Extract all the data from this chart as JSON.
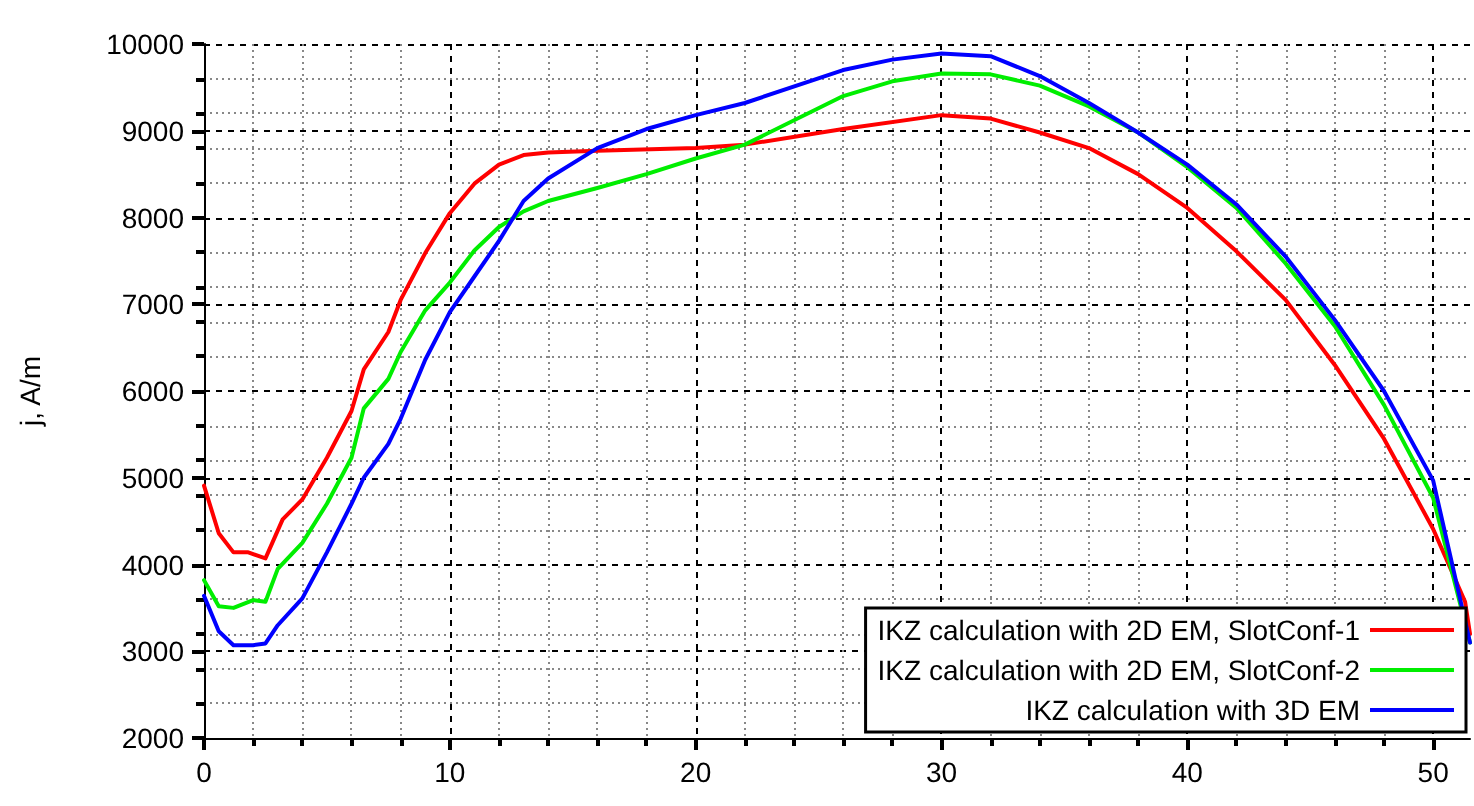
{
  "chart_data": {
    "type": "line",
    "ylabel": "j, A/m",
    "xlim": [
      0,
      51.5
    ],
    "ylim": [
      2000,
      10000
    ],
    "xticks": [
      0,
      10,
      20,
      30,
      40,
      50
    ],
    "yticks": [
      2000,
      3000,
      4000,
      5000,
      6000,
      7000,
      8000,
      9000,
      10000
    ],
    "grid": true,
    "legend": "bottom right",
    "marker": "none",
    "line_style": "solid",
    "series": [
      {
        "name": "IKZ calculation with 2D EM, SlotConf-1",
        "color": "#ff0000",
        "x": [
          0,
          0.6,
          1.2,
          1.8,
          2.5,
          3.2,
          4,
          5,
          6,
          6.5,
          7.5,
          8,
          9,
          10,
          11,
          12,
          13,
          14,
          16,
          20,
          22,
          26,
          30,
          32,
          34,
          36,
          38,
          40,
          42,
          44,
          46,
          48,
          50,
          51.3,
          51.5
        ],
        "values": [
          4910,
          4360,
          4140,
          4140,
          4070,
          4520,
          4750,
          5230,
          5770,
          6250,
          6680,
          7050,
          7590,
          8050,
          8390,
          8610,
          8720,
          8750,
          8770,
          8800,
          8840,
          9020,
          9180,
          9140,
          8980,
          8800,
          8500,
          8110,
          7610,
          7050,
          6300,
          5450,
          4410,
          3570,
          3200
        ]
      },
      {
        "name": "IKZ calculation with 2D EM, SlotConf-2",
        "color": "#00ee00",
        "x": [
          0,
          0.6,
          1.2,
          2,
          2.5,
          3,
          4,
          5,
          6,
          6.5,
          7.5,
          8,
          9,
          10,
          11,
          12,
          13,
          14,
          16,
          18,
          20,
          22,
          26,
          28,
          30,
          32,
          34,
          36,
          38,
          40,
          42,
          44,
          46,
          48,
          50,
          51.5
        ],
        "values": [
          3820,
          3520,
          3500,
          3590,
          3570,
          3950,
          4250,
          4700,
          5230,
          5800,
          6140,
          6450,
          6930,
          7250,
          7620,
          7890,
          8070,
          8190,
          8340,
          8500,
          8680,
          8840,
          9400,
          9570,
          9660,
          9650,
          9520,
          9280,
          8980,
          8580,
          8110,
          7470,
          6750,
          5840,
          4770,
          3100
        ]
      },
      {
        "name": "IKZ calculation with 3D EM",
        "color": "#0000ff",
        "x": [
          0,
          0.6,
          1.2,
          2,
          2.5,
          3,
          4,
          5,
          6,
          6.5,
          7.5,
          8,
          9,
          10,
          11,
          12,
          13,
          14,
          16,
          18,
          20,
          22,
          26,
          28,
          30,
          32,
          34,
          36,
          38,
          40,
          42,
          44,
          46,
          48,
          50,
          51.5
        ],
        "values": [
          3640,
          3230,
          3070,
          3070,
          3090,
          3300,
          3610,
          4140,
          4700,
          5000,
          5390,
          5680,
          6360,
          6910,
          7320,
          7730,
          8190,
          8450,
          8800,
          9020,
          9180,
          9320,
          9700,
          9820,
          9890,
          9860,
          9630,
          9320,
          8980,
          8610,
          8150,
          7550,
          6820,
          6000,
          4970,
          3100
        ]
      }
    ]
  }
}
